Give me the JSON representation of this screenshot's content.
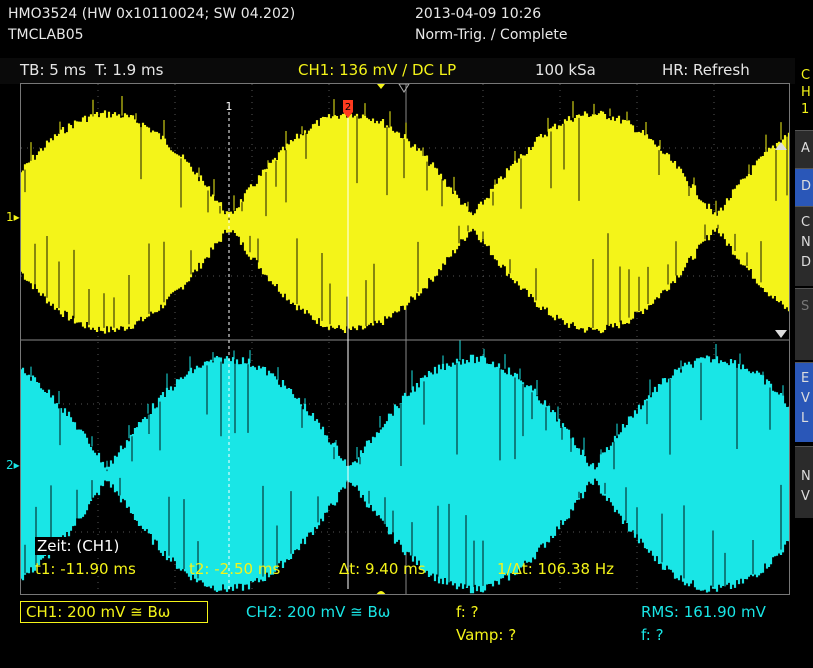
{
  "header": {
    "model": "HMO3524 (HW 0x10110024; SW 04.202)",
    "lab": "TMCLAB05",
    "datetime": "2013-04-09 10:26",
    "trigger_status": "Norm-Trig. / Complete"
  },
  "infobar": {
    "timebase": "TB: 5 ms",
    "trigger_time": "T: 1.9 ms",
    "ch1_trigger": "CH1: 136 mV / DC LP",
    "sample_rate": "100 kSa",
    "mode": "HR: Refresh"
  },
  "markers": {
    "ch1": "1",
    "ch2": "2",
    "cursor1": "1",
    "cursor2": "2"
  },
  "measurements": {
    "title": "Zeit: (CH1)",
    "t1": "t1: -11.90 ms",
    "t2": "t2: -2.50 ms",
    "dt": "Δt: 9.40 ms",
    "inv_dt": "1/Δt: 106.38 Hz"
  },
  "bottom": {
    "ch1_scale": "CH1: 200 mV ≅ Bω",
    "ch2_scale": "CH2: 200 mV ≅ Bω",
    "f1": "f: ?",
    "vamp": "Vamp: ?",
    "rms": "RMS: 161.90 mV",
    "f2": "f: ?"
  },
  "side_panel": {
    "labels": [
      "C",
      "H",
      "1",
      "A",
      "D",
      "C",
      "N",
      "D",
      "S",
      "E",
      "V",
      "L",
      "N",
      "V"
    ]
  },
  "colors": {
    "ch1": "#f4f419",
    "ch2": "#19e6e6",
    "grid": "#555555",
    "cursor": "#ff3b1f",
    "accent_blue": "#2a57b8"
  }
}
